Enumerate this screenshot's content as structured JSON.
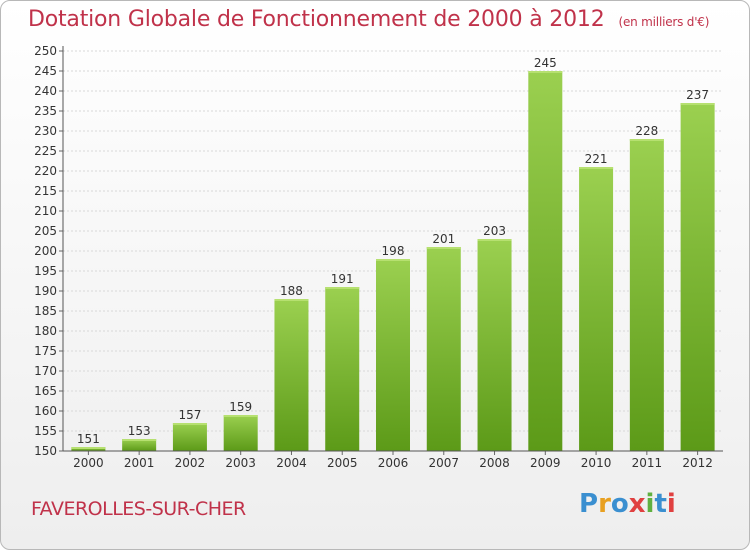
{
  "title": "Dotation Globale de Fonctionnement de 2000 à 2012",
  "subtitle": "(en milliers d'€)",
  "commune": "FAVEROLLES-SUR-CHER",
  "logo": {
    "letters": [
      "P",
      "r",
      "o",
      "x",
      "i",
      "t",
      "i"
    ],
    "colors": [
      "#3a8fd0",
      "#e8a020",
      "#3a8fd0",
      "#e04040",
      "#60b040",
      "#3a8fd0",
      "#e04040"
    ]
  },
  "colors": {
    "bar_top": "#9bd050",
    "bar_bottom": "#5c9a18",
    "title": "#c0324a",
    "grid": "#d8d8d8"
  },
  "chart_data": {
    "type": "bar",
    "title": "Dotation Globale de Fonctionnement de 2000 à 2012",
    "subtitle": "(en milliers d'€)",
    "categories": [
      "2000",
      "2001",
      "2002",
      "2003",
      "2004",
      "2005",
      "2006",
      "2007",
      "2008",
      "2009",
      "2010",
      "2011",
      "2012"
    ],
    "values": [
      151,
      153,
      157,
      159,
      188,
      191,
      198,
      201,
      203,
      245,
      221,
      228,
      237
    ],
    "ylim": [
      150,
      250
    ],
    "ytick_step": 5,
    "grid": true,
    "legend": "none"
  }
}
